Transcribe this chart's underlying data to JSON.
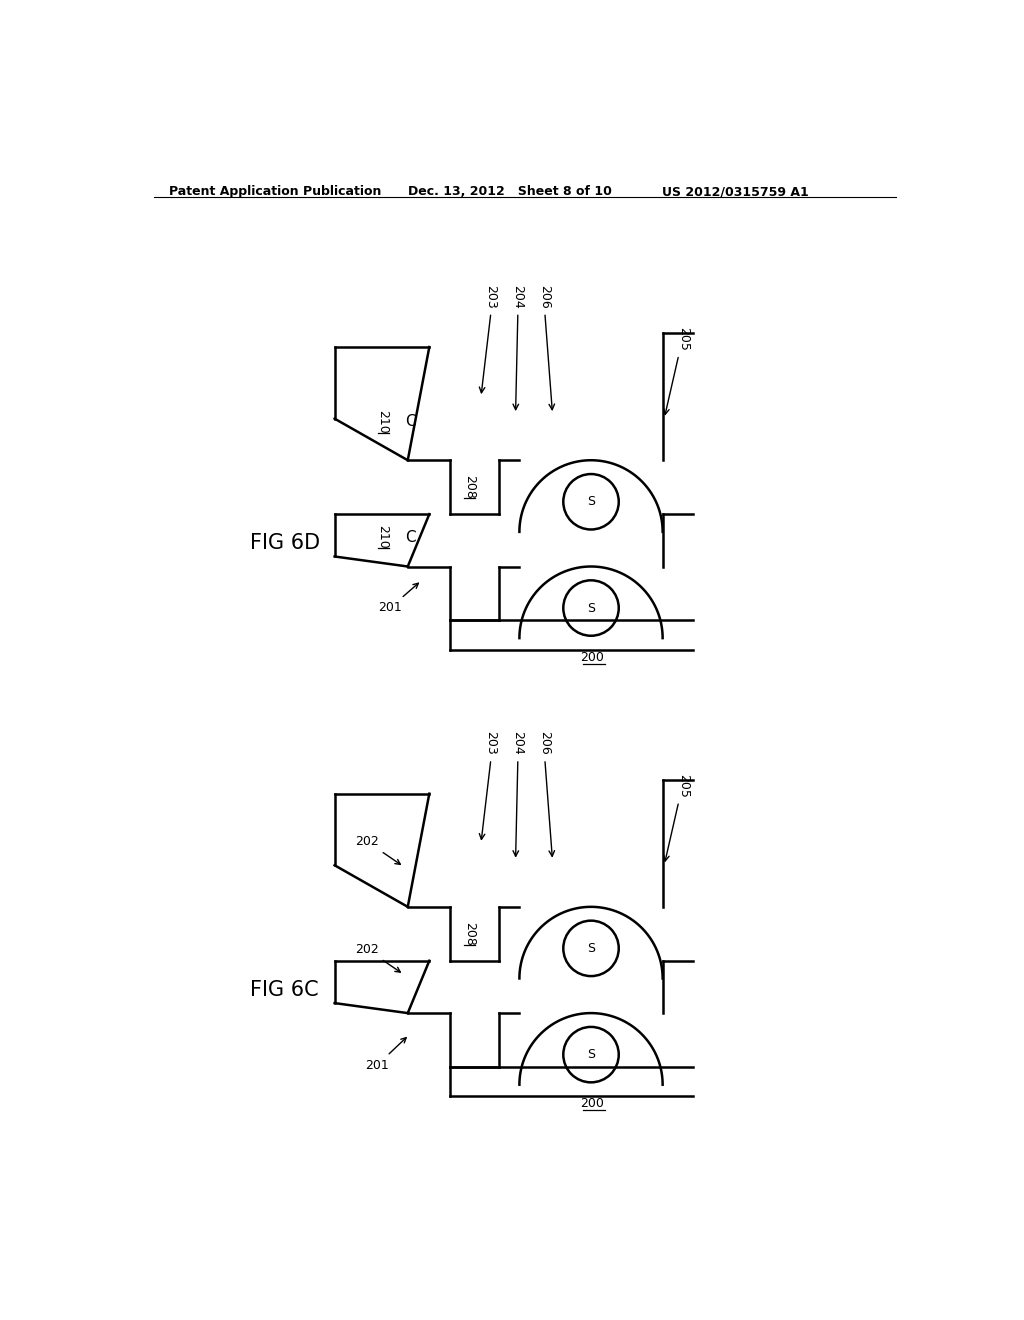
{
  "header_left": "Patent Application Publication",
  "header_mid": "Dec. 13, 2012   Sheet 8 of 10",
  "header_right": "US 2012/0315759 A1",
  "fig6d_label": "FIG 6D",
  "fig6c_label": "FIG 6C",
  "line_color": "#000000",
  "bg_color": "#ffffff",
  "line_width": 1.8
}
